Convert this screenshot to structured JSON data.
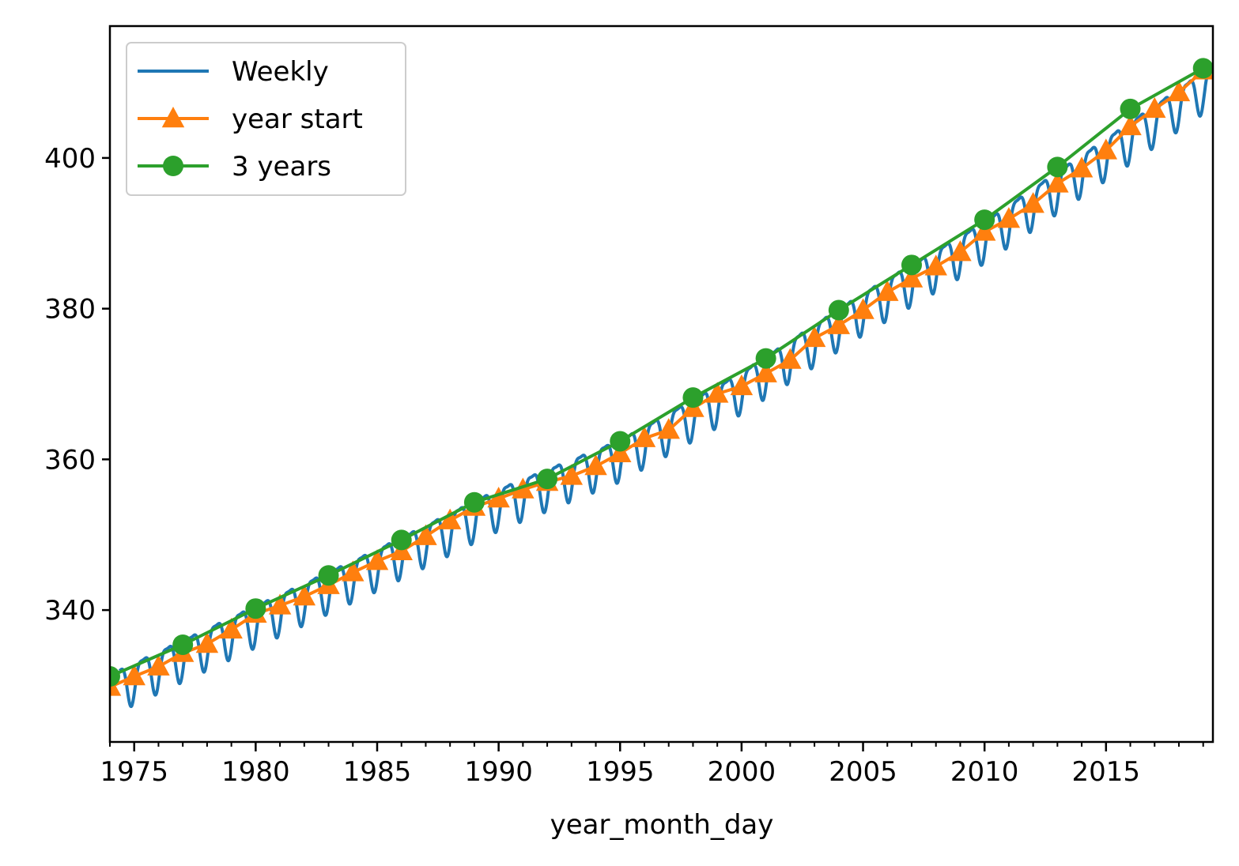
{
  "chart_data": {
    "type": "line",
    "title": "",
    "xlabel": "year_month_day",
    "ylabel": "",
    "xlim": [
      1974.0,
      2019.4
    ],
    "ylim": [
      322.5,
      417.5
    ],
    "x_ticks": [
      1975,
      1980,
      1985,
      1990,
      1995,
      2000,
      2005,
      2010,
      2015
    ],
    "x_tick_labels": [
      "1975",
      "1980",
      "1985",
      "1990",
      "1995",
      "2000",
      "2005",
      "2010",
      "2015"
    ],
    "y_ticks": [
      340,
      360,
      380,
      400
    ],
    "y_tick_labels": [
      "340",
      "360",
      "380",
      "400"
    ],
    "legend": {
      "placement": "top-left",
      "entries": [
        "Weekly",
        "year start",
        "3 years"
      ]
    },
    "series": [
      {
        "name": "Weekly",
        "color": "#1f77b4",
        "marker": "none",
        "description": "weekly CO2 readings with seasonal cycle",
        "trend_x": [
          1974.4,
          1980,
          1985,
          1990,
          1995,
          2000,
          2005,
          2010,
          2015,
          2019.3
        ],
        "trend_y": [
          330.0,
          338.5,
          346.0,
          354.0,
          360.5,
          369.5,
          380.0,
          389.5,
          400.5,
          410.0
        ],
        "seasonal_amplitude": 3.2
      },
      {
        "name": "year start",
        "color": "#ff7f0e",
        "marker": "triangle",
        "x": [
          1974,
          1975,
          1976,
          1977,
          1978,
          1979,
          1980,
          1981,
          1982,
          1983,
          1984,
          1985,
          1986,
          1987,
          1988,
          1989,
          1990,
          1991,
          1992,
          1993,
          1994,
          1995,
          1996,
          1997,
          1998,
          1999,
          2000,
          2001,
          2002,
          2003,
          2004,
          2005,
          2006,
          2007,
          2008,
          2009,
          2010,
          2011,
          2012,
          2013,
          2014,
          2015,
          2016,
          2017,
          2018,
          2019
        ],
        "values": [
          329.8,
          331.2,
          332.5,
          334.3,
          335.5,
          337.4,
          339.5,
          340.6,
          341.8,
          343.3,
          345.0,
          346.5,
          347.8,
          349.8,
          351.9,
          353.7,
          354.8,
          356.0,
          357.0,
          357.8,
          359.1,
          360.8,
          362.8,
          363.9,
          366.8,
          368.7,
          369.7,
          371.4,
          373.2,
          376.1,
          377.8,
          379.8,
          382.2,
          384.0,
          385.6,
          387.5,
          390.2,
          391.9,
          393.9,
          396.6,
          398.6,
          401.0,
          404.2,
          406.5,
          408.7,
          411.6
        ]
      },
      {
        "name": "3 years",
        "color": "#2ca02c",
        "marker": "circle",
        "x": [
          1974,
          1977,
          1980,
          1983,
          1986,
          1989,
          1992,
          1995,
          1998,
          2001,
          2004,
          2007,
          2010,
          2013,
          2016,
          2019
        ],
        "values": [
          331.2,
          335.4,
          340.2,
          344.6,
          349.3,
          354.3,
          357.4,
          362.4,
          368.2,
          373.4,
          379.8,
          385.8,
          391.8,
          398.8,
          406.5,
          411.9
        ]
      }
    ]
  }
}
